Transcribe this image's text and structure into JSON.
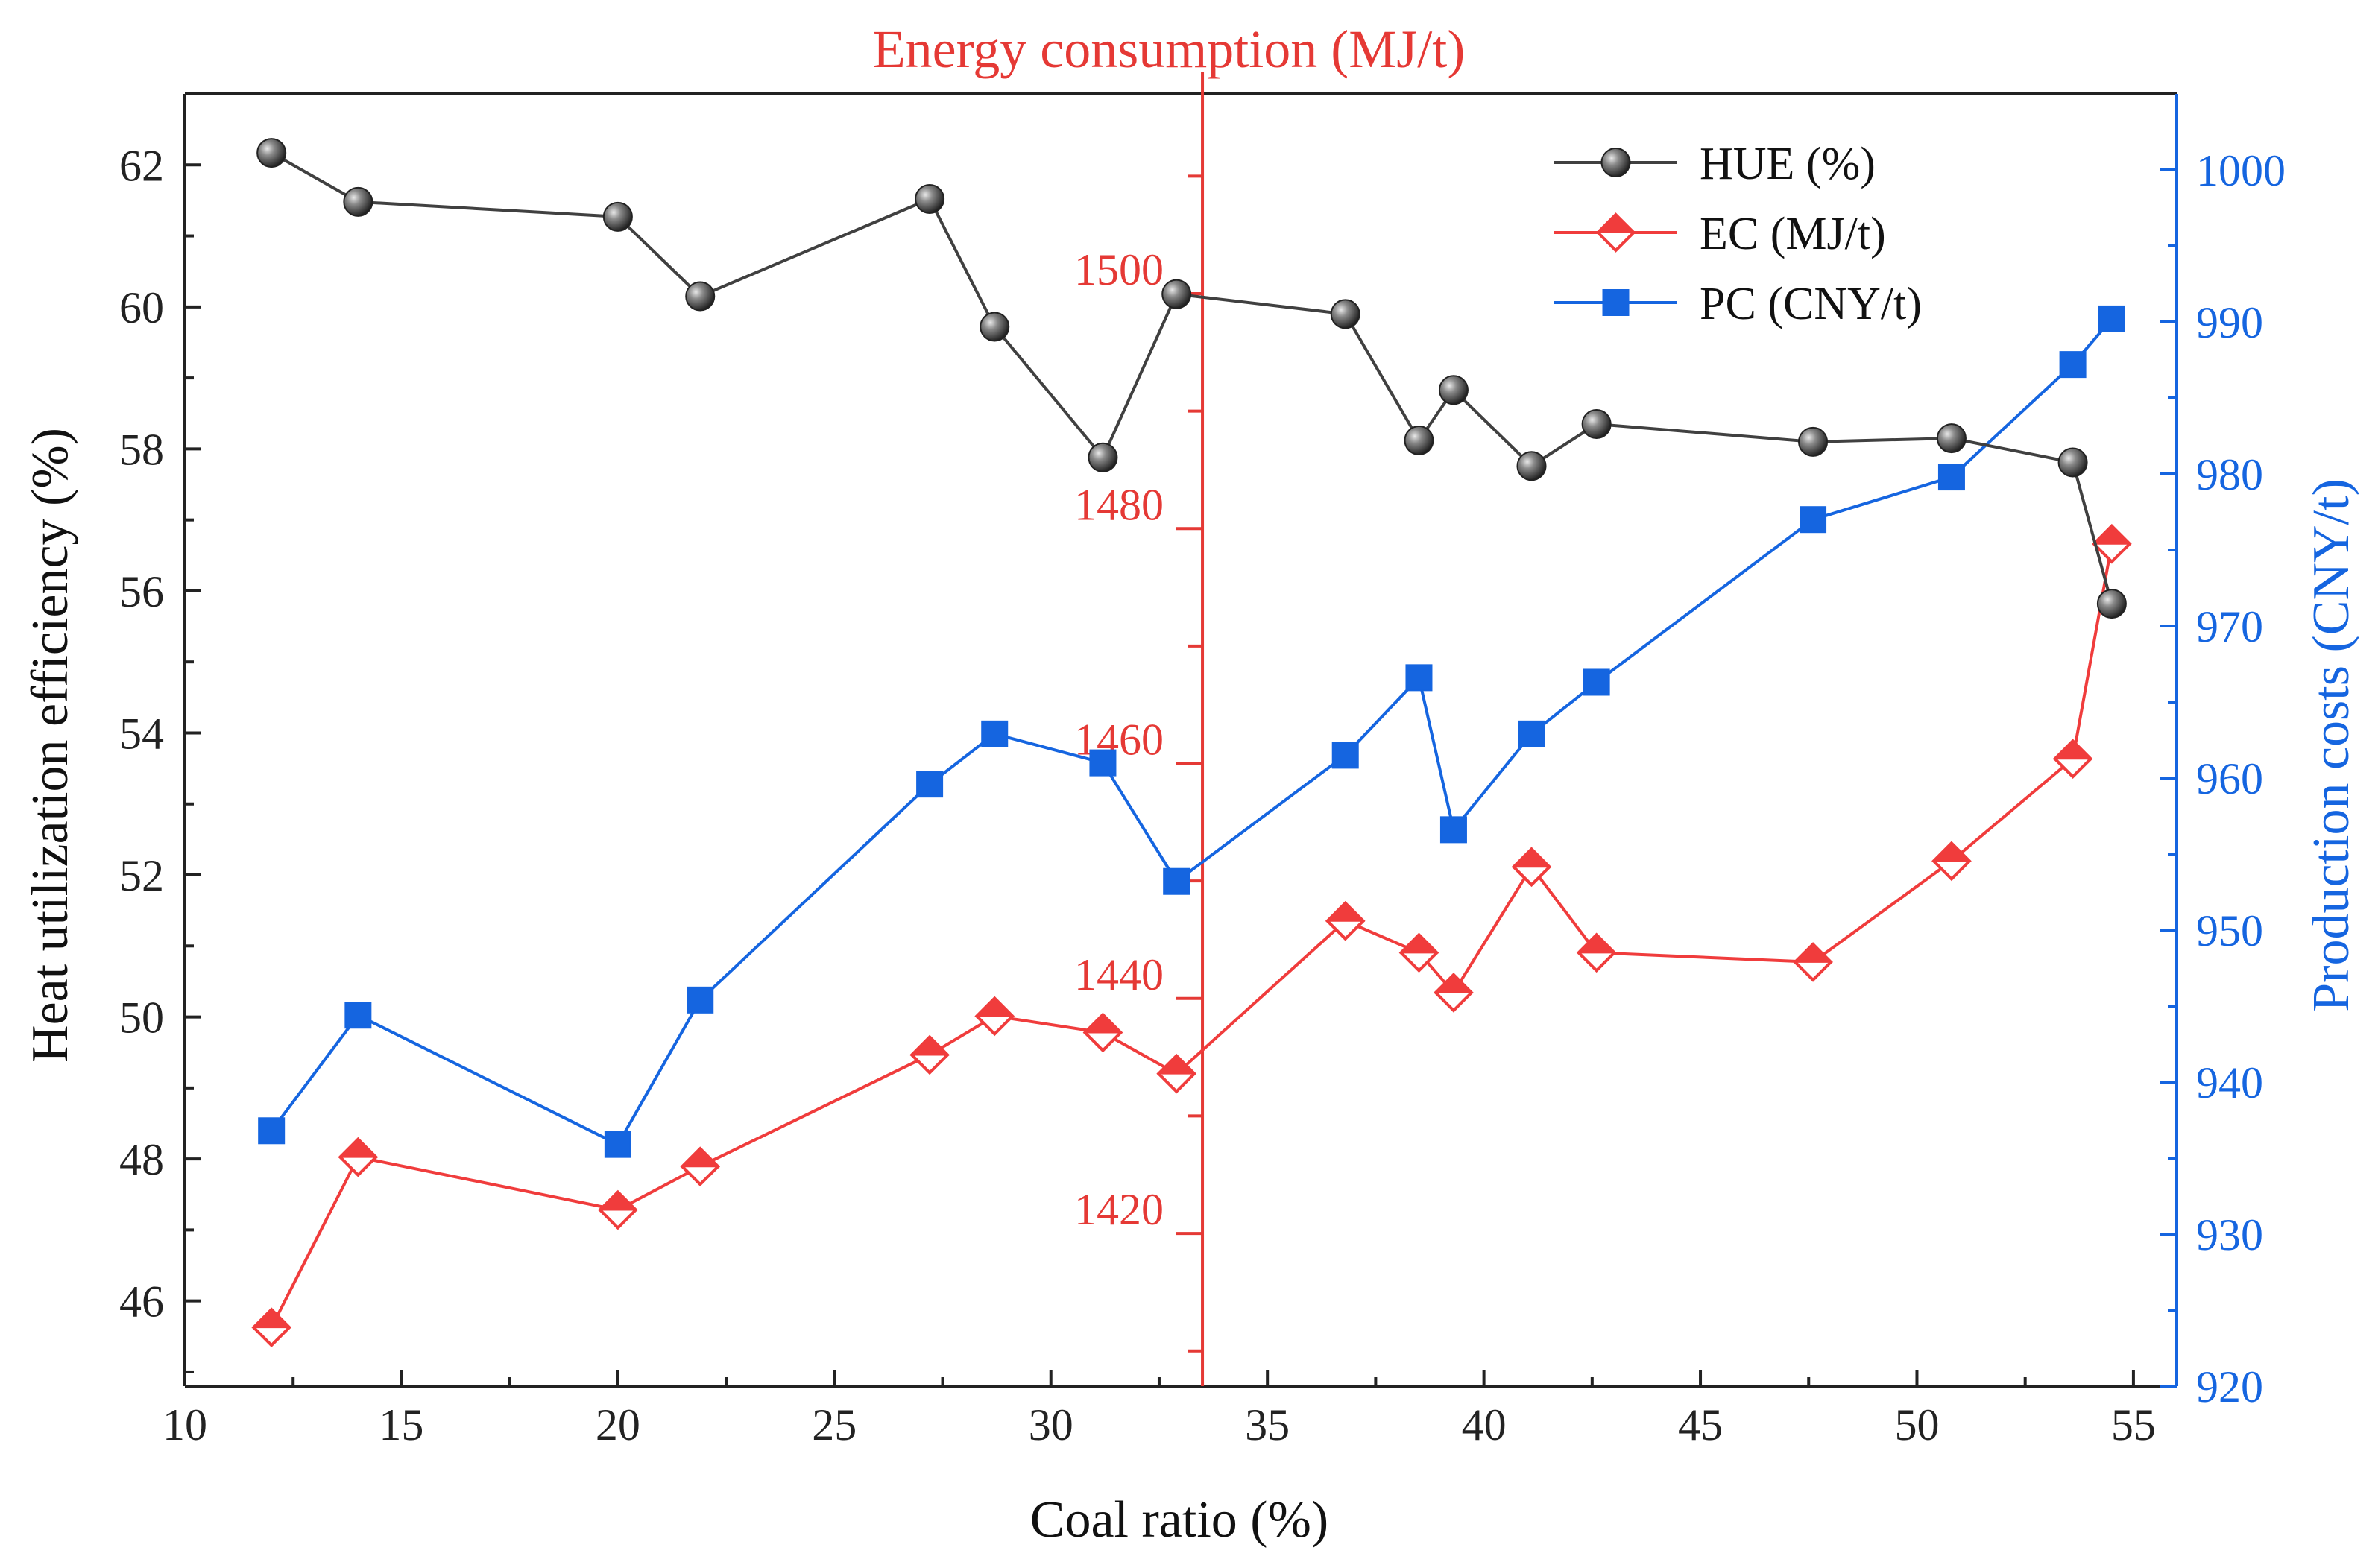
{
  "chart_data": {
    "type": "line",
    "title": "",
    "middle_axis_title": "Energy consumption (MJ/t)",
    "xlabel": "Coal ratio (%)",
    "ylabel_left": "Heat utilization efficiency (%)",
    "ylabel_right": "Production costs (CNY/t)",
    "xlim": [
      10,
      56
    ],
    "ylim_left": [
      44.8,
      63.0
    ],
    "ylim_middle": [
      1407,
      1517
    ],
    "ylim_right": [
      920,
      1005
    ],
    "x_ticks": [
      10,
      15,
      20,
      25,
      30,
      35,
      40,
      45,
      50,
      55
    ],
    "y_left_ticks": [
      46,
      48,
      50,
      52,
      54,
      56,
      58,
      60,
      62
    ],
    "y_middle_ticks": [
      1420,
      1440,
      1460,
      1480,
      1500
    ],
    "y_right_ticks": [
      920,
      930,
      940,
      950,
      960,
      970,
      980,
      990,
      1000
    ],
    "x_middle_axis_position": 33.5,
    "legend_position": "top-right",
    "series": [
      {
        "name": "HUE (%)",
        "axis": "left",
        "color": "#404040",
        "marker": "sphere",
        "x": [
          12.0,
          14.0,
          20.0,
          21.9,
          27.2,
          28.7,
          31.2,
          32.9,
          36.8,
          38.5,
          39.3,
          41.1,
          42.6,
          47.6,
          50.8,
          53.6,
          54.5
        ],
        "y": [
          62.17,
          61.48,
          61.27,
          60.15,
          61.52,
          59.72,
          57.88,
          60.18,
          59.9,
          58.12,
          58.83,
          57.76,
          58.35,
          58.1,
          58.15,
          57.81,
          55.82
        ]
      },
      {
        "name": "EC (MJ/t)",
        "axis": "middle",
        "color": "#f03c3c",
        "marker": "diamond",
        "x": [
          12.0,
          14.0,
          20.0,
          21.9,
          27.2,
          28.7,
          31.2,
          32.9,
          36.8,
          38.5,
          39.3,
          41.1,
          42.6,
          47.6,
          50.8,
          53.6,
          54.5
        ],
        "y": [
          1412.0,
          1426.5,
          1422.0,
          1425.7,
          1435.2,
          1438.5,
          1437.1,
          1433.6,
          1446.6,
          1443.9,
          1440.5,
          1451.2,
          1443.9,
          1443.1,
          1451.7,
          1460.4,
          1478.7
        ]
      },
      {
        "name": "PC (CNY/t)",
        "axis": "right",
        "color": "#1565e0",
        "marker": "square",
        "x": [
          12.0,
          14.0,
          20.0,
          21.9,
          27.2,
          28.7,
          31.2,
          32.9,
          36.8,
          38.5,
          39.3,
          41.1,
          42.6,
          47.6,
          50.8,
          53.6,
          54.5
        ],
        "y": [
          936.8,
          944.4,
          935.9,
          945.4,
          959.6,
          962.9,
          961.0,
          953.2,
          961.5,
          966.6,
          956.6,
          962.9,
          966.3,
          977.0,
          979.8,
          987.2,
          990.2
        ]
      }
    ]
  }
}
